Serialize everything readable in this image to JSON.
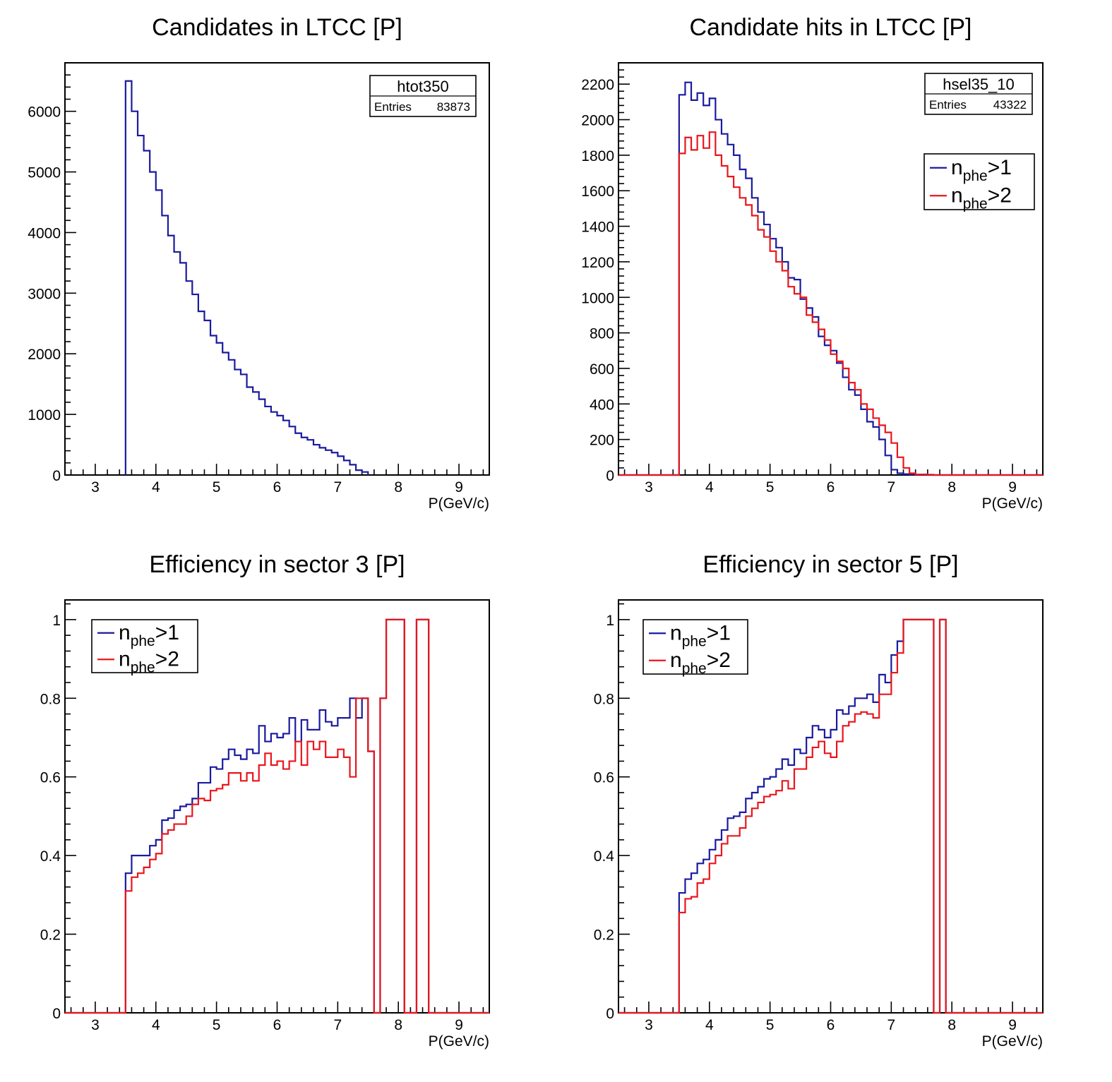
{
  "chart_data": [
    {
      "type": "histogram",
      "title": "Candidates in LTCC [P]",
      "xlabel": "P(GeV/c)",
      "ylabel": "",
      "xlim": [
        2.5,
        9.5
      ],
      "ylim": [
        0,
        6800
      ],
      "x_ticks": [
        "3",
        "4",
        "5",
        "6",
        "7",
        "8",
        "9"
      ],
      "y_ticks": [
        "0",
        "1000",
        "2000",
        "3000",
        "4000",
        "5000",
        "6000"
      ],
      "bin_width": 0.1,
      "bin_start": 3.5,
      "stats_box": {
        "name": "htot350",
        "entries_label": "Entries",
        "entries": "83873"
      },
      "series": [
        {
          "color": "#1a1a9e",
          "values": [
            6500,
            6000,
            5600,
            5350,
            5000,
            4700,
            4280,
            3950,
            3680,
            3500,
            3200,
            2980,
            2700,
            2550,
            2300,
            2180,
            2020,
            1900,
            1740,
            1660,
            1450,
            1370,
            1250,
            1130,
            1040,
            980,
            900,
            800,
            690,
            620,
            580,
            500,
            450,
            410,
            370,
            310,
            240,
            170,
            80,
            50
          ]
        }
      ]
    },
    {
      "type": "histogram",
      "title": "Candidate hits in LTCC [P]",
      "xlabel": "P(GeV/c)",
      "ylabel": "",
      "xlim": [
        2.5,
        9.5
      ],
      "ylim": [
        0,
        2320
      ],
      "x_ticks": [
        "3",
        "4",
        "5",
        "6",
        "7",
        "8",
        "9"
      ],
      "y_ticks": [
        "0",
        "200",
        "400",
        "600",
        "800",
        "1000",
        "1200",
        "1400",
        "1600",
        "1800",
        "2000",
        "2200"
      ],
      "bin_width": 0.1,
      "bin_start": 2.5,
      "stats_box": {
        "name": "hsel35_10",
        "entries_label": "Entries",
        "entries": "43322"
      },
      "legend": {
        "entries": [
          {
            "main": "n",
            "sub": "phe",
            "rest": ">1",
            "color": "#1a1a9e"
          },
          {
            "main": "n",
            "sub": "phe",
            "rest": ">2",
            "color": "#e8161c"
          }
        ]
      },
      "series": [
        {
          "color": "#1a1a9e",
          "values": [
            0,
            0,
            0,
            0,
            0,
            0,
            0,
            0,
            0,
            0,
            2140,
            2210,
            2110,
            2150,
            2080,
            2120,
            2000,
            1920,
            1860,
            1800,
            1720,
            1670,
            1560,
            1480,
            1410,
            1330,
            1280,
            1200,
            1110,
            1100,
            990,
            940,
            890,
            780,
            730,
            700,
            630,
            550,
            480,
            450,
            370,
            300,
            270,
            200,
            110,
            30,
            10,
            5,
            3,
            2,
            2,
            0,
            0,
            0,
            0,
            0,
            0,
            0,
            0,
            0,
            0,
            0,
            0,
            0,
            0,
            0,
            0,
            0,
            0,
            0
          ]
        },
        {
          "color": "#e8161c",
          "values": [
            0,
            0,
            0,
            0,
            0,
            0,
            0,
            0,
            0,
            0,
            1810,
            1900,
            1830,
            1910,
            1840,
            1930,
            1800,
            1740,
            1680,
            1620,
            1560,
            1520,
            1460,
            1380,
            1340,
            1260,
            1200,
            1150,
            1060,
            1020,
            1000,
            900,
            860,
            820,
            760,
            680,
            640,
            600,
            520,
            480,
            400,
            370,
            320,
            280,
            240,
            180,
            100,
            40,
            10,
            3,
            3,
            2,
            0,
            0,
            0,
            0,
            0,
            0,
            0,
            0,
            0,
            0,
            0,
            0,
            0,
            0,
            0,
            0,
            0,
            0
          ]
        }
      ]
    },
    {
      "type": "histogram",
      "title": "Efficiency in sector 3 [P]",
      "xlabel": "P(GeV/c)",
      "ylabel": "",
      "xlim": [
        2.5,
        9.5
      ],
      "ylim": [
        0,
        1.05
      ],
      "x_ticks": [
        "3",
        "4",
        "5",
        "6",
        "7",
        "8",
        "9"
      ],
      "y_ticks": [
        "0",
        "0.2",
        "0.4",
        "0.6",
        "0.8",
        "1"
      ],
      "bin_width": 0.1,
      "bin_start": 2.5,
      "legend": {
        "entries": [
          {
            "main": "n",
            "sub": "phe",
            "rest": ">1",
            "color": "#1a1a9e"
          },
          {
            "main": "n",
            "sub": "phe",
            "rest": ">2",
            "color": "#e8161c"
          }
        ]
      },
      "series": [
        {
          "color": "#1a1a9e",
          "values": [
            0,
            0,
            0,
            0,
            0,
            0,
            0,
            0,
            0,
            0,
            0.355,
            0.4,
            0.4,
            0.4,
            0.425,
            0.44,
            0.49,
            0.495,
            0.515,
            0.525,
            0.53,
            0.545,
            0.585,
            0.585,
            0.625,
            0.62,
            0.645,
            0.67,
            0.655,
            0.645,
            0.67,
            0.66,
            0.73,
            0.69,
            0.71,
            0.7,
            0.71,
            0.75,
            0.69,
            0.745,
            0.72,
            0.72,
            0.77,
            0.74,
            0.73,
            0.75,
            0.75,
            0.8,
            0.75,
            0.8,
            0.665,
            0,
            0.8,
            1.0,
            1.0,
            1.0,
            0,
            0,
            1.0,
            1.0,
            0,
            0,
            0,
            0,
            0,
            0,
            0,
            0,
            0,
            0
          ]
        },
        {
          "color": "#e8161c",
          "values": [
            0,
            0,
            0,
            0,
            0,
            0,
            0,
            0,
            0,
            0,
            0.31,
            0.345,
            0.355,
            0.37,
            0.39,
            0.405,
            0.455,
            0.465,
            0.48,
            0.48,
            0.5,
            0.53,
            0.545,
            0.54,
            0.565,
            0.57,
            0.58,
            0.61,
            0.61,
            0.59,
            0.61,
            0.59,
            0.63,
            0.66,
            0.63,
            0.64,
            0.62,
            0.64,
            0.69,
            0.63,
            0.69,
            0.67,
            0.69,
            0.65,
            0.65,
            0.67,
            0.65,
            0.6,
            0.8,
            0.8,
            0.665,
            0,
            0.8,
            1.0,
            1.0,
            1.0,
            0,
            0,
            1.0,
            1.0,
            0,
            0,
            0,
            0,
            0,
            0,
            0,
            0,
            0,
            0
          ]
        }
      ]
    },
    {
      "type": "histogram",
      "title": "Efficiency in sector 5 [P]",
      "xlabel": "P(GeV/c)",
      "ylabel": "",
      "xlim": [
        2.5,
        9.5
      ],
      "ylim": [
        0,
        1.05
      ],
      "x_ticks": [
        "3",
        "4",
        "5",
        "6",
        "7",
        "8",
        "9"
      ],
      "y_ticks": [
        "0",
        "0.2",
        "0.4",
        "0.6",
        "0.8",
        "1"
      ],
      "bin_width": 0.1,
      "bin_start": 2.5,
      "legend": {
        "entries": [
          {
            "main": "n",
            "sub": "phe",
            "rest": ">1",
            "color": "#1a1a9e"
          },
          {
            "main": "n",
            "sub": "phe",
            "rest": ">2",
            "color": "#e8161c"
          }
        ]
      },
      "series": [
        {
          "color": "#1a1a9e",
          "values": [
            0,
            0,
            0,
            0,
            0,
            0,
            0,
            0,
            0,
            0,
            0.305,
            0.34,
            0.355,
            0.38,
            0.39,
            0.415,
            0.44,
            0.465,
            0.495,
            0.5,
            0.51,
            0.545,
            0.56,
            0.575,
            0.595,
            0.6,
            0.62,
            0.645,
            0.63,
            0.67,
            0.66,
            0.7,
            0.73,
            0.72,
            0.7,
            0.72,
            0.77,
            0.76,
            0.78,
            0.8,
            0.8,
            0.81,
            0.79,
            0.86,
            0.84,
            0.91,
            0.945,
            1.0,
            1.0,
            1.0,
            1.0,
            1.0,
            0,
            1.0,
            0,
            0,
            0,
            0,
            0,
            0,
            0,
            0,
            0,
            0,
            0,
            0,
            0,
            0,
            0,
            0
          ]
        },
        {
          "color": "#e8161c",
          "values": [
            0,
            0,
            0,
            0,
            0,
            0,
            0,
            0,
            0,
            0,
            0.255,
            0.29,
            0.295,
            0.33,
            0.34,
            0.38,
            0.4,
            0.43,
            0.45,
            0.45,
            0.47,
            0.5,
            0.52,
            0.535,
            0.55,
            0.555,
            0.565,
            0.59,
            0.57,
            0.62,
            0.62,
            0.65,
            0.675,
            0.69,
            0.66,
            0.65,
            0.69,
            0.73,
            0.74,
            0.76,
            0.765,
            0.76,
            0.75,
            0.81,
            0.81,
            0.865,
            0.915,
            1.0,
            1.0,
            1.0,
            1.0,
            1.0,
            0,
            1.0,
            0,
            0,
            0,
            0,
            0,
            0,
            0,
            0,
            0,
            0,
            0,
            0,
            0,
            0,
            0,
            0
          ]
        }
      ]
    }
  ]
}
